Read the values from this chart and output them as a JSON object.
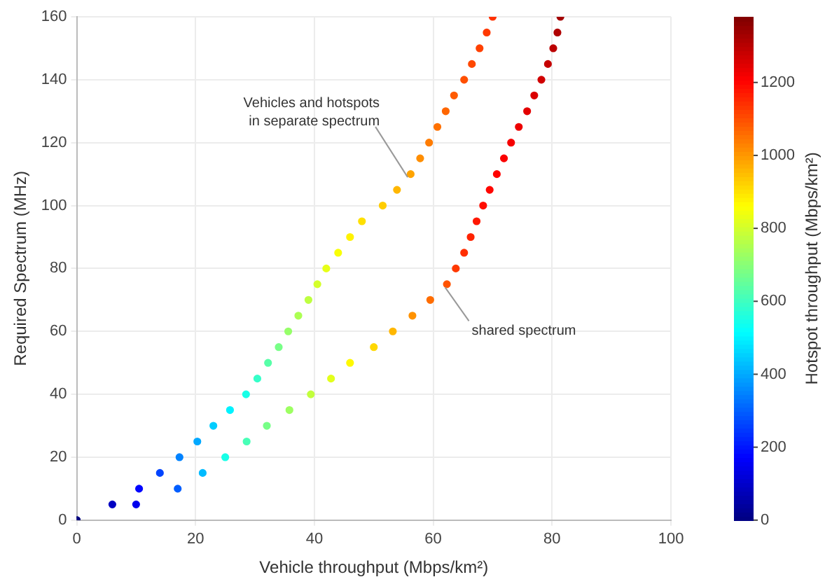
{
  "chart_data": {
    "type": "scatter",
    "xlabel": "Vehicle throughput (Mbps/km²)",
    "ylabel": "Required Spectrum (MHz)",
    "clabel": "Hotspot throughput (Mbps/km²)",
    "xlim": [
      0,
      100
    ],
    "xticks": [
      0,
      20,
      40,
      60,
      80,
      100
    ],
    "ylim": [
      0,
      160
    ],
    "yticks": [
      0,
      20,
      40,
      60,
      80,
      100,
      120,
      140,
      160
    ],
    "clim": [
      0,
      1380
    ],
    "cticks": [
      0,
      200,
      400,
      600,
      800,
      1000,
      1200
    ],
    "grid": true,
    "legend": false,
    "marker": "circle",
    "series": [
      {
        "x": [
          0,
          6,
          10.5,
          14,
          17.3,
          20.3,
          23,
          25.8,
          28.5,
          30.4,
          32.2,
          34,
          35.6,
          37.3,
          39,
          40.5,
          42,
          44,
          46,
          48,
          51.5,
          53.9,
          56.2,
          57.8,
          59.3,
          60.7,
          62.1,
          63.5,
          65.2,
          66.5,
          67.8,
          69,
          70
        ],
        "values": [
          0,
          5,
          10,
          15,
          20,
          25,
          30,
          35,
          40,
          45,
          50,
          55,
          60,
          65,
          70,
          75,
          80,
          85,
          90,
          95,
          100,
          105,
          110,
          115,
          120,
          125,
          130,
          135,
          140,
          145,
          150,
          155,
          160
        ],
        "cvalues": [
          0,
          90,
          180,
          265,
          350,
          400,
          450,
          500,
          550,
          590,
          635,
          680,
          720,
          750,
          775,
          805,
          830,
          855,
          880,
          905,
          930,
          960,
          985,
          1015,
          1040,
          1055,
          1070,
          1085,
          1100,
          1110,
          1120,
          1130,
          1140
        ],
        "colors": [
          "#000080",
          "#0000c2",
          "#0006ff",
          "#0044ff",
          "#0083ff",
          "#00a8ff",
          "#00cdff",
          "#00f2ff",
          "#18ffe7",
          "#36ffc9",
          "#57ffa8",
          "#78ff87",
          "#96ff69",
          "#acff53",
          "#beff41",
          "#d4ff2b",
          "#e7ff18",
          "#f9ff06",
          "#fff200",
          "#ffe000",
          "#ffcd00",
          "#ffb700",
          "#ffa400",
          "#ff8e00",
          "#ff7c00",
          "#ff7100",
          "#ff6600",
          "#ff5b00",
          "#ff5000",
          "#ff4800",
          "#ff4100",
          "#ff3900",
          "#ff3200"
        ]
      },
      {
        "x": [
          0,
          10,
          17,
          21.2,
          25,
          28.6,
          32,
          35.8,
          39.4,
          42.8,
          46,
          50,
          53.2,
          56.5,
          59.5,
          62.3,
          63.8,
          65.2,
          66.3,
          67.3,
          68.4,
          69.5,
          70.7,
          71.9,
          73.1,
          74.4,
          75.8,
          77,
          78.2,
          79.3,
          80.2,
          80.9,
          81.4
        ],
        "values": [
          0,
          5,
          10,
          15,
          20,
          25,
          30,
          35,
          40,
          45,
          50,
          55,
          60,
          65,
          70,
          75,
          80,
          85,
          90,
          95,
          100,
          105,
          110,
          115,
          120,
          125,
          130,
          135,
          140,
          145,
          150,
          155,
          160
        ],
        "cvalues": [
          0,
          150,
          300,
          425,
          550,
          615,
          680,
          730,
          780,
          825,
          870,
          915,
          960,
          1010,
          1060,
          1095,
          1130,
          1145,
          1160,
          1175,
          1190,
          1198,
          1205,
          1213,
          1220,
          1232,
          1245,
          1257,
          1270,
          1285,
          1300,
          1315,
          1330
        ],
        "colors": [
          "#000080",
          "#0000ee",
          "#005eff",
          "#00bbff",
          "#18ffe7",
          "#48ffb7",
          "#78ff87",
          "#9dff62",
          "#c2ff3d",
          "#e3ff1c",
          "#fff900",
          "#ffd800",
          "#ffb700",
          "#ff9200",
          "#ff6d00",
          "#ff5300",
          "#ff3900",
          "#ff2e00",
          "#ff2300",
          "#ff1800",
          "#ff0d00",
          "#ff0700",
          "#ff0200",
          "#fb0000",
          "#f60000",
          "#ed0000",
          "#e30000",
          "#db0000",
          "#d10000",
          "#c60000",
          "#bb0000",
          "#af0000",
          "#a40000"
        ]
      }
    ],
    "annotations": [
      {
        "text": "Vehicles and hotspots\nin separate spectrum",
        "x": 55.7,
        "y": 109
      },
      {
        "text": "shared spectrum",
        "x": 62,
        "y": 74
      }
    ]
  }
}
